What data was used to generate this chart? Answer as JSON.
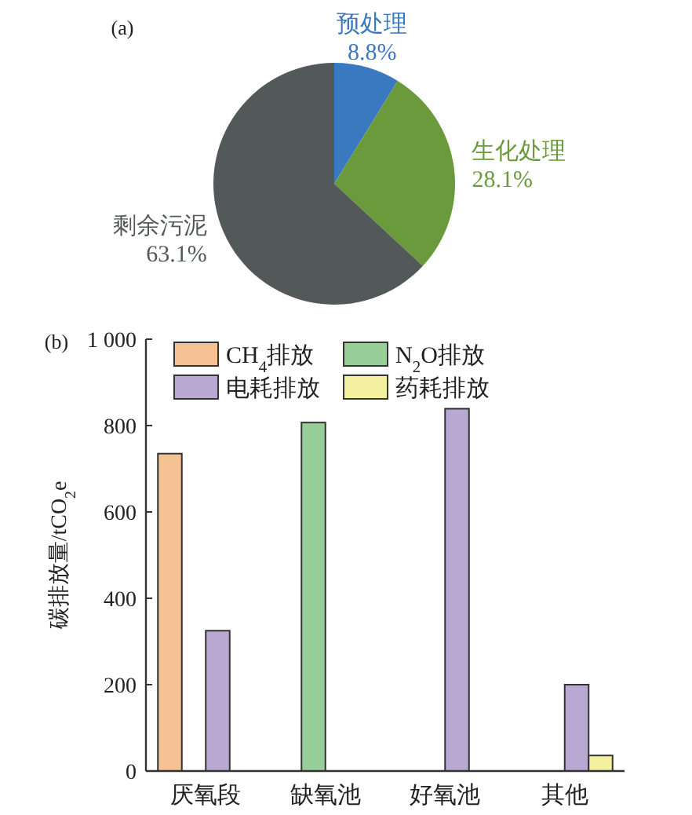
{
  "chart_data": [
    {
      "type": "pie",
      "title": "(a)",
      "categories": [
        "预处理",
        "生化处理",
        "剩余污泥"
      ],
      "values": [
        8.8,
        28.1,
        63.1
      ],
      "colors": [
        "#3a78c0",
        "#6a9a3c",
        "#535858"
      ],
      "value_labels": [
        "8.8%",
        "28.1%",
        "63.1%"
      ]
    },
    {
      "type": "bar",
      "title": "(b)",
      "ylabel": "碳排放量/tCO$_{2}$e",
      "categories": [
        "厌氧段",
        "缺氧池",
        "好氧池",
        "其他"
      ],
      "series": [
        {
          "name": "CH$_{4}$排放",
          "color": "#f5c293",
          "values": [
            735,
            null,
            null,
            null
          ]
        },
        {
          "name": "N$_{2}$O排放",
          "color": "#98cf98",
          "values": [
            null,
            807,
            null,
            null
          ]
        },
        {
          "name": "电耗排放",
          "color": "#b8a8d2",
          "values": [
            325,
            null,
            839,
            200
          ]
        },
        {
          "name": "药耗排放",
          "color": "#f3f1a0",
          "values": [
            null,
            null,
            null,
            36
          ]
        }
      ],
      "ylim": [
        0,
        1000
      ],
      "yticks": [
        0,
        200,
        400,
        600,
        800,
        {
          "value": 1000,
          "label": "1 000"
        }
      ],
      "legend": "top",
      "grid": false
    }
  ]
}
